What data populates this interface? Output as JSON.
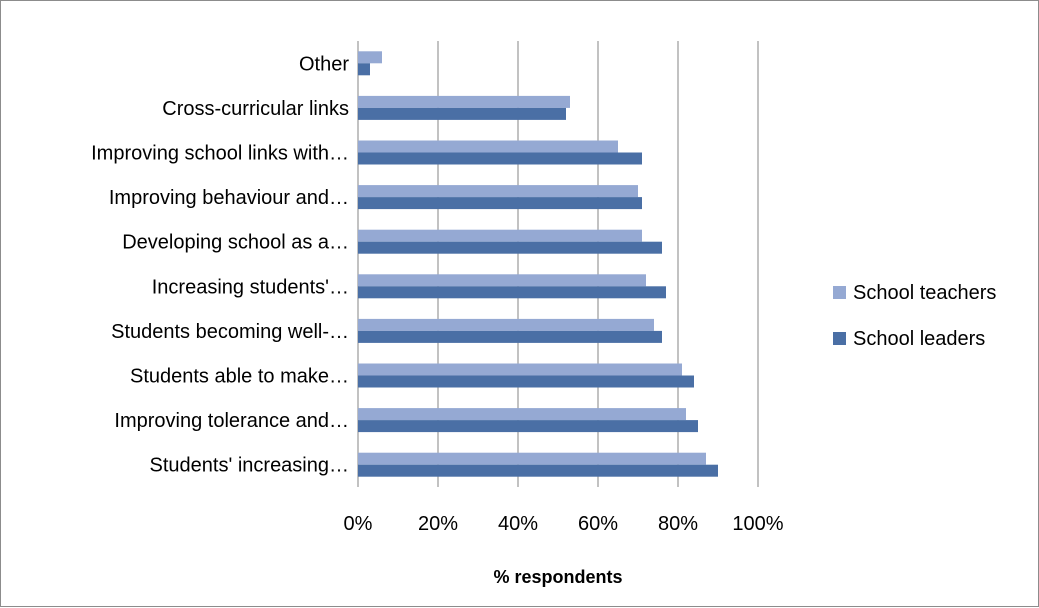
{
  "chart_data": {
    "type": "bar",
    "orientation": "horizontal",
    "categories": [
      "Other",
      "Cross-curricular links",
      "Improving school links with…",
      "Improving behaviour and…",
      "Developing school as a…",
      "Increasing students'…",
      "Students becoming well-…",
      "Students able to make…",
      "Improving tolerance and…",
      "Students' increasing…"
    ],
    "series": [
      {
        "name": "School teachers",
        "color": "#95a9d3",
        "values": [
          6,
          53,
          65,
          70,
          71,
          72,
          74,
          81,
          82,
          87
        ]
      },
      {
        "name": "School leaders",
        "color": "#4a6fa5",
        "values": [
          3,
          52,
          71,
          71,
          76,
          77,
          76,
          84,
          85,
          90
        ]
      }
    ],
    "xlabel": "% respondents",
    "xlim": [
      0,
      100
    ],
    "xticks": [
      "0%",
      "20%",
      "40%",
      "60%",
      "80%",
      "100%"
    ],
    "grid": "vertical",
    "legend_position": "right"
  }
}
